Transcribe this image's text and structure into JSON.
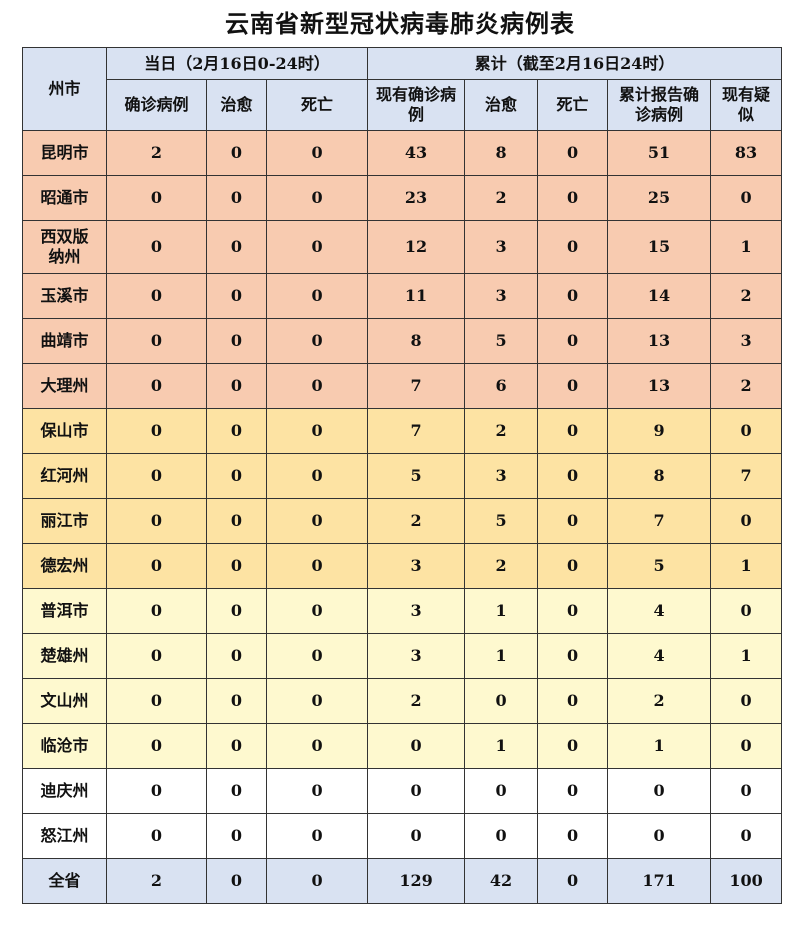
{
  "title": "云南省新型冠状病毒肺炎病例表",
  "header": {
    "region": "州市",
    "daily_group": "当日（2月16日0-24时）",
    "cumulative_group": "累计（截至2月16日24时）",
    "columns": [
      "确诊病例",
      "治愈",
      "死亡",
      "现有确诊病例",
      "治愈",
      "死亡",
      "累计报告确诊病例",
      "现有疑似"
    ]
  },
  "colors": {
    "header": "#d9e2f2",
    "pink": "#f8cbb0",
    "orange": "#fde3a3",
    "yellow": "#fef9cf",
    "white": "#ffffff",
    "total": "#d9e2f2"
  },
  "rows": [
    {
      "region": "昆明市",
      "tier": "pink",
      "values": [
        2,
        0,
        0,
        43,
        8,
        0,
        51,
        83
      ]
    },
    {
      "region": "昭通市",
      "tier": "pink",
      "values": [
        0,
        0,
        0,
        23,
        2,
        0,
        25,
        0
      ]
    },
    {
      "region": "西双版纳州",
      "tier": "pink",
      "values": [
        0,
        0,
        0,
        12,
        3,
        0,
        15,
        1
      ]
    },
    {
      "region": "玉溪市",
      "tier": "pink",
      "values": [
        0,
        0,
        0,
        11,
        3,
        0,
        14,
        2
      ]
    },
    {
      "region": "曲靖市",
      "tier": "pink",
      "values": [
        0,
        0,
        0,
        8,
        5,
        0,
        13,
        3
      ]
    },
    {
      "region": "大理州",
      "tier": "pink",
      "values": [
        0,
        0,
        0,
        7,
        6,
        0,
        13,
        2
      ]
    },
    {
      "region": "保山市",
      "tier": "orange",
      "values": [
        0,
        0,
        0,
        7,
        2,
        0,
        9,
        0
      ]
    },
    {
      "region": "红河州",
      "tier": "orange",
      "values": [
        0,
        0,
        0,
        5,
        3,
        0,
        8,
        7
      ]
    },
    {
      "region": "丽江市",
      "tier": "orange",
      "values": [
        0,
        0,
        0,
        2,
        5,
        0,
        7,
        0
      ]
    },
    {
      "region": "德宏州",
      "tier": "orange",
      "values": [
        0,
        0,
        0,
        3,
        2,
        0,
        5,
        1
      ]
    },
    {
      "region": "普洱市",
      "tier": "yellow",
      "values": [
        0,
        0,
        0,
        3,
        1,
        0,
        4,
        0
      ]
    },
    {
      "region": "楚雄州",
      "tier": "yellow",
      "values": [
        0,
        0,
        0,
        3,
        1,
        0,
        4,
        1
      ]
    },
    {
      "region": "文山州",
      "tier": "yellow",
      "values": [
        0,
        0,
        0,
        2,
        0,
        0,
        2,
        0
      ]
    },
    {
      "region": "临沧市",
      "tier": "yellow",
      "values": [
        0,
        0,
        0,
        0,
        1,
        0,
        1,
        0
      ]
    },
    {
      "region": "迪庆州",
      "tier": "white",
      "values": [
        0,
        0,
        0,
        0,
        0,
        0,
        0,
        0
      ]
    },
    {
      "region": "怒江州",
      "tier": "white",
      "values": [
        0,
        0,
        0,
        0,
        0,
        0,
        0,
        0
      ]
    }
  ],
  "total": {
    "region": "全省",
    "values": [
      2,
      0,
      0,
      129,
      42,
      0,
      171,
      100
    ]
  }
}
